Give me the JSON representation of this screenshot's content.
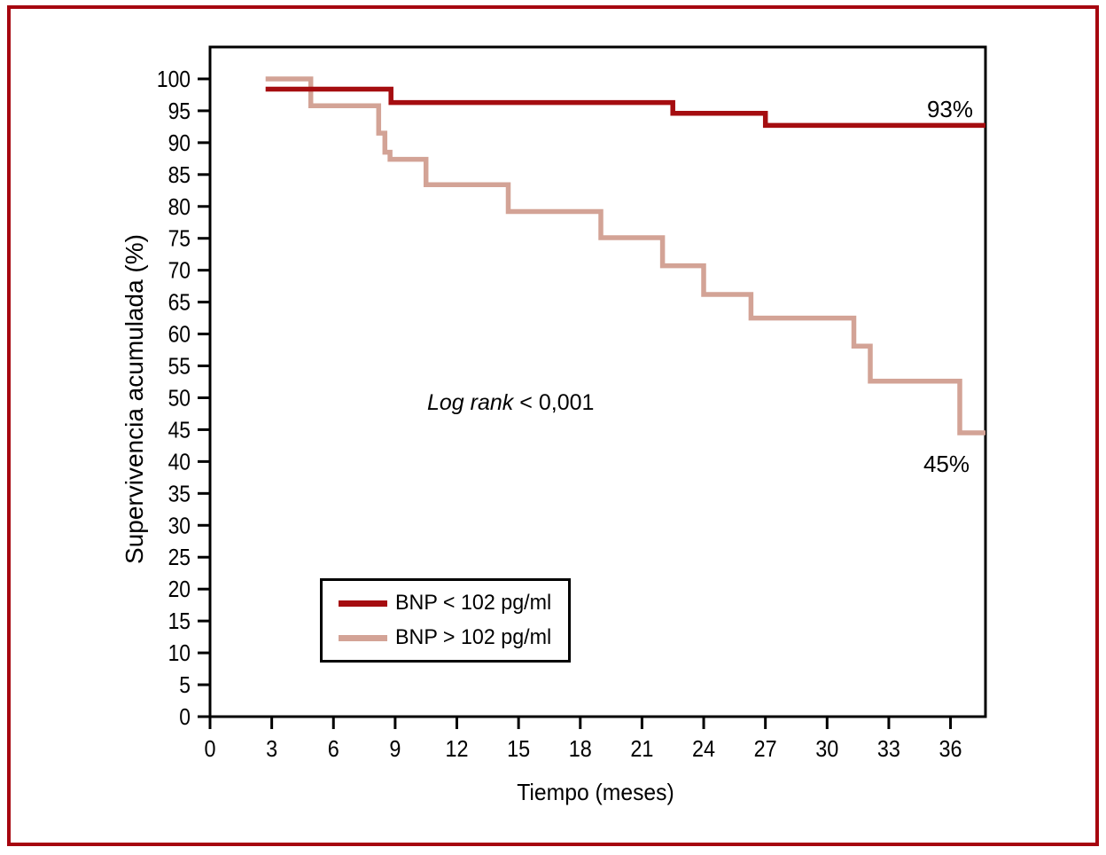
{
  "figure": {
    "background": "#ffffff",
    "frame_color": "#a6050f",
    "axis_color": "#000000"
  },
  "chart_data": {
    "type": "line",
    "subtype": "kaplan-meier-step",
    "title": "",
    "xlabel": "Tiempo (meses)",
    "ylabel": "Supervivencia acumulada (%)",
    "x_ticks": [
      0,
      3,
      6,
      9,
      12,
      15,
      18,
      21,
      24,
      27,
      30,
      33,
      36
    ],
    "y_ticks": [
      0,
      5,
      10,
      15,
      20,
      25,
      30,
      35,
      40,
      45,
      50,
      55,
      60,
      65,
      70,
      75,
      80,
      85,
      90,
      95,
      100
    ],
    "xlim": [
      0,
      37.7
    ],
    "ylim": [
      0,
      105
    ],
    "grid": false,
    "legend_position": "lower-left-inside",
    "annotation": {
      "italic_part": "Log rank",
      "regular_part": "< 0,001"
    },
    "series": [
      {
        "name": "BNP < 102 pg/ml",
        "color": "#a50d10",
        "final_label": "93%",
        "points_months_percent": [
          [
            2.7,
            98.4
          ],
          [
            8.8,
            98.4
          ],
          [
            8.8,
            96.3
          ],
          [
            22.5,
            96.3
          ],
          [
            22.5,
            94.6
          ],
          [
            27.0,
            94.6
          ],
          [
            27.0,
            92.7
          ],
          [
            37.7,
            92.7
          ]
        ]
      },
      {
        "name": "BNP > 102 pg/ml",
        "color": "#d3a396",
        "final_label": "45%",
        "points_months_percent": [
          [
            2.7,
            100
          ],
          [
            4.9,
            100
          ],
          [
            4.9,
            95.8
          ],
          [
            8.2,
            95.8
          ],
          [
            8.2,
            91.5
          ],
          [
            8.5,
            91.5
          ],
          [
            8.5,
            88.5
          ],
          [
            8.75,
            88.5
          ],
          [
            8.75,
            87.4
          ],
          [
            10.5,
            87.4
          ],
          [
            10.5,
            83.4
          ],
          [
            14.5,
            83.4
          ],
          [
            14.5,
            79.2
          ],
          [
            19.0,
            79.2
          ],
          [
            19.0,
            75.1
          ],
          [
            22.0,
            75.1
          ],
          [
            22.0,
            70.7
          ],
          [
            24.0,
            70.7
          ],
          [
            24.0,
            66.2
          ],
          [
            26.3,
            66.2
          ],
          [
            26.3,
            62.5
          ],
          [
            31.3,
            62.5
          ],
          [
            31.3,
            58.1
          ],
          [
            32.1,
            58.1
          ],
          [
            32.1,
            52.6
          ],
          [
            36.45,
            52.6
          ],
          [
            36.45,
            44.5
          ],
          [
            37.7,
            44.5
          ]
        ]
      }
    ]
  }
}
